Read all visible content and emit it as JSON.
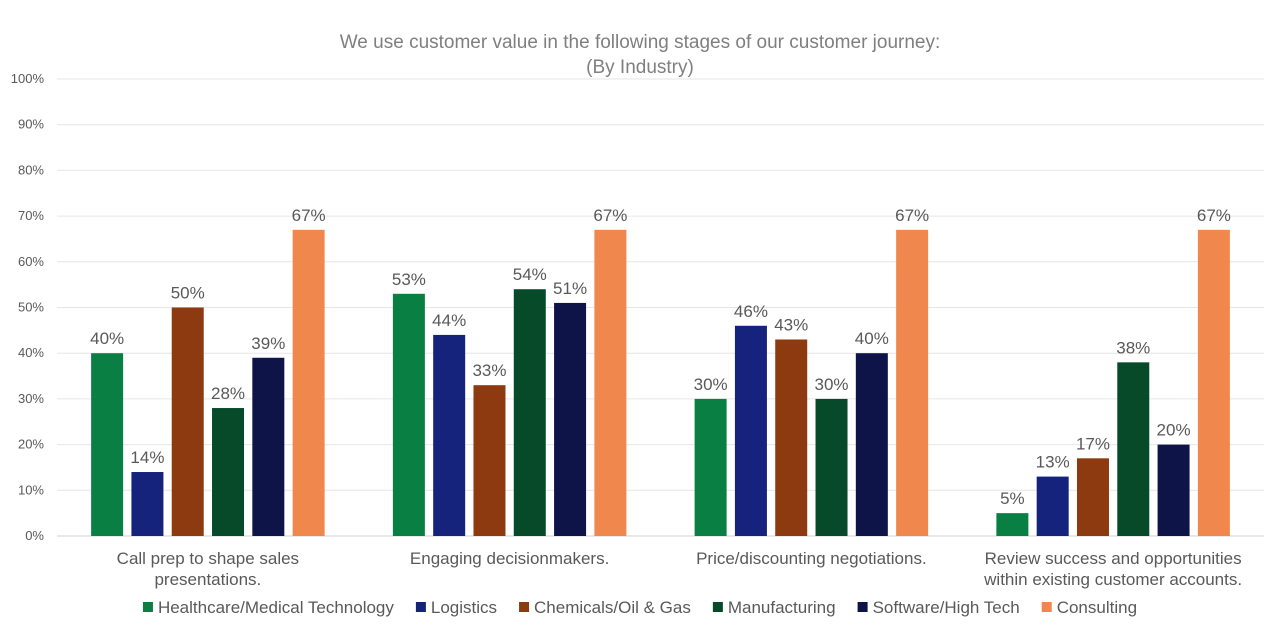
{
  "chart_data": {
    "type": "bar",
    "title": "We use customer value in the following stages of our customer journey:",
    "subtitle": "(By Industry)",
    "xlabel": "",
    "ylabel": "",
    "ylim": [
      0,
      100
    ],
    "yticks": [
      "0%",
      "10%",
      "20%",
      "30%",
      "40%",
      "50%",
      "60%",
      "70%",
      "80%",
      "90%",
      "100%"
    ],
    "grid": true,
    "legend_position": "bottom",
    "categories": [
      [
        "Call prep to shape sales",
        "presentations."
      ],
      [
        "Engaging decisionmakers."
      ],
      [
        "Price/discounting negotiations."
      ],
      [
        "Review success and opportunities",
        "within existing customer accounts."
      ]
    ],
    "series": [
      {
        "name": "Healthcare/Medical Technology",
        "color": "#0a7f43",
        "values": [
          40,
          53,
          30,
          5
        ]
      },
      {
        "name": "Logistics",
        "color": "#15237c",
        "values": [
          14,
          44,
          46,
          13
        ]
      },
      {
        "name": "Chemicals/Oil & Gas",
        "color": "#8e3a10",
        "values": [
          50,
          33,
          43,
          17
        ]
      },
      {
        "name": "Manufacturing",
        "color": "#074a2a",
        "values": [
          28,
          54,
          30,
          38
        ]
      },
      {
        "name": "Software/High Tech",
        "color": "#0e1448",
        "values": [
          39,
          51,
          40,
          20
        ]
      },
      {
        "name": "Consulting",
        "color": "#f0874c",
        "values": [
          67,
          67,
          67,
          67
        ]
      }
    ],
    "value_suffix": "%"
  }
}
